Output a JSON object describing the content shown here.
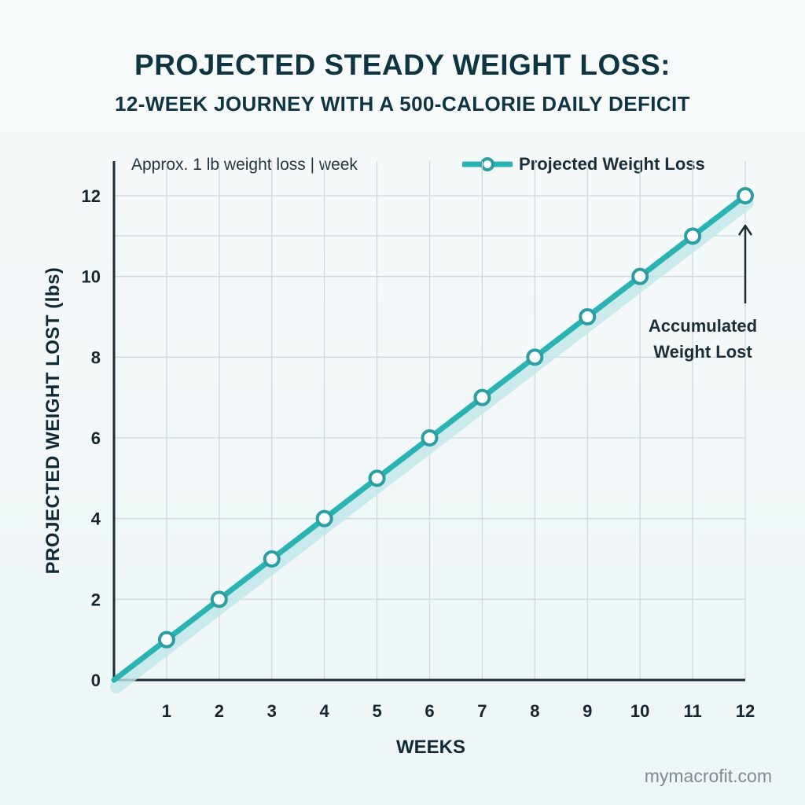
{
  "chart_data": {
    "type": "line",
    "title": "PROJECTED STEADY WEIGHT LOSS:",
    "subtitle": "12-WEEK JOURNEY WITH A 500-CALORIE DAILY DEFICIT",
    "note": "Approx. 1 lb weight loss | week",
    "xlabel": "WEEKS",
    "ylabel": "PROJECTED WEIGHT LOST (lbs)",
    "x": [
      0,
      1,
      2,
      3,
      4,
      5,
      6,
      7,
      8,
      9,
      10,
      11,
      12
    ],
    "x_ticks": [
      1,
      2,
      3,
      4,
      5,
      6,
      7,
      8,
      9,
      10,
      11,
      12
    ],
    "y_ticks": [
      0,
      2,
      4,
      6,
      8,
      10,
      12
    ],
    "xlim": [
      0,
      12
    ],
    "ylim": [
      0,
      12
    ],
    "grid": true,
    "legend_position": "top-right",
    "series": [
      {
        "name": "Projected Weight Loss",
        "values": [
          0,
          1,
          2,
          3,
          4,
          5,
          6,
          7,
          8,
          9,
          10,
          11,
          12
        ],
        "color": "#2ab3b3"
      }
    ],
    "annotation": {
      "lines": [
        "Accumulated",
        "Weight Lost"
      ],
      "target_x": 12,
      "target_y": 12
    }
  },
  "footer": "mymacrofit.com"
}
